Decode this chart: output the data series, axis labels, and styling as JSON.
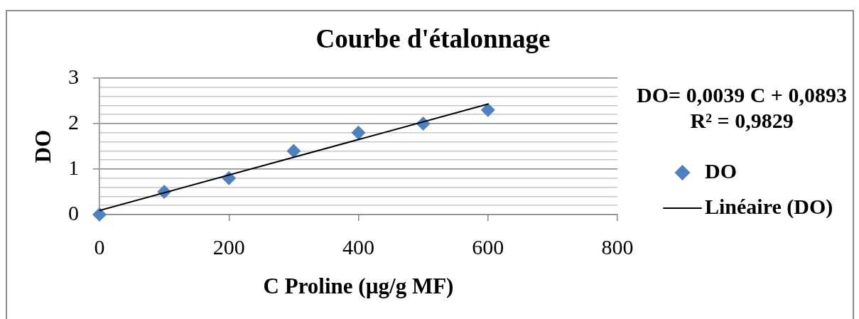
{
  "chart_data": {
    "type": "scatter",
    "title": "Courbe d'étalonnage",
    "xlabel": "C Proline (µg/g MF)",
    "ylabel": "DO",
    "x": [
      0,
      100,
      200,
      300,
      400,
      500,
      600
    ],
    "series": [
      {
        "name": "DO",
        "color": "#4f81bd",
        "values": [
          0,
          0.5,
          0.8,
          1.4,
          1.8,
          2.0,
          2.3
        ]
      },
      {
        "name": "Linéaire (DO)",
        "type": "line",
        "color": "#000000",
        "x": [
          0,
          600
        ],
        "values": [
          0.09,
          2.43
        ],
        "marker": "none"
      }
    ],
    "xlim": [
      0,
      800
    ],
    "xticks": [
      0,
      200,
      400,
      600,
      800
    ],
    "ylim": [
      0,
      3
    ],
    "yticks": [
      0,
      {
        "value": 0.2,
        "label": null
      },
      {
        "value": 0.4,
        "label": null
      },
      {
        "value": 0.6,
        "label": null
      },
      {
        "value": 0.8,
        "label": null
      },
      1,
      {
        "value": 1.2,
        "label": null
      },
      {
        "value": 1.4,
        "label": null
      },
      {
        "value": 1.6,
        "label": null
      },
      {
        "value": 1.8,
        "label": null
      },
      2,
      {
        "value": 2.2,
        "label": null
      },
      {
        "value": 2.4,
        "label": null
      },
      {
        "value": 2.6,
        "label": null
      },
      {
        "value": 2.8,
        "label": null
      },
      3
    ],
    "grid": "y",
    "legend": "right",
    "marker": "diamond",
    "annotations": [
      "DO= 0,0039 C + 0,0893",
      "R² = 0,9829"
    ]
  }
}
